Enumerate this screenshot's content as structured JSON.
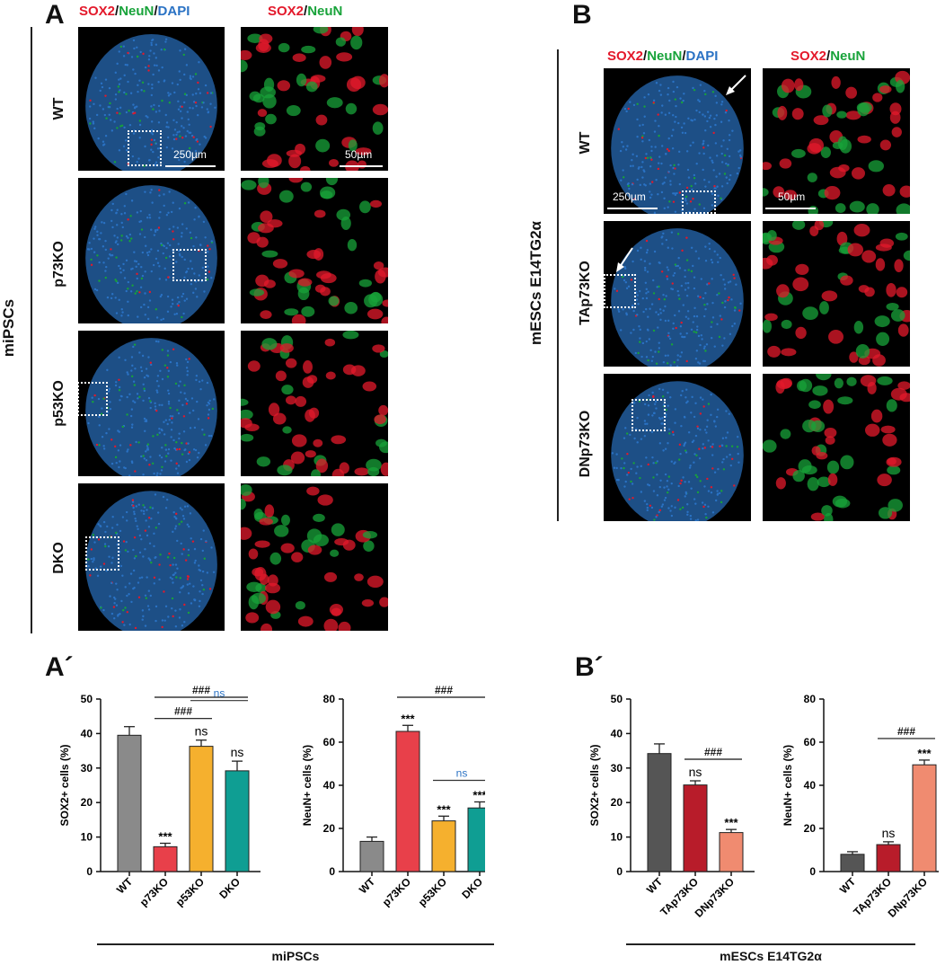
{
  "panels": {
    "A": "A",
    "B": "B",
    "A_prime": "A´",
    "B_prime": "B´"
  },
  "stain_headers": {
    "merged3": {
      "sox2": "SOX2",
      "sep1": "/",
      "neun": "NeuN",
      "sep2": "/",
      "dapi": "DAPI"
    },
    "merged2": {
      "sox2": "SOX2",
      "sep1": "/",
      "neun": "NeuN"
    }
  },
  "group_labels": {
    "A": "miPSCs",
    "B": "mESCs E14TG2α"
  },
  "rows_A": [
    "WT",
    "p73KO",
    "p53KO",
    "DKO"
  ],
  "rows_B": [
    "WT",
    "TAp73KO",
    "DNp73KO"
  ],
  "scalebars": {
    "low": "250µm",
    "high": "50µm"
  },
  "colors": {
    "sox2": "#e3192b",
    "neun": "#18a33a",
    "dapi": "#2a72c4",
    "wt_gray": "#8a8a8a",
    "p73ko_red": "#e8404a",
    "p53ko_yellow": "#f5b02e",
    "dko_teal": "#0f9e93",
    "b_wt_dark": "#555555",
    "b_tap73_crimson": "#b81c2a",
    "b_dnp73_salmon": "#f08b70",
    "ns_blue": "#2a72c4"
  },
  "chart_data": [
    {
      "type": "bar",
      "group": "miPSCs",
      "ylabel": "SOX2+ cells (%)",
      "ylim": [
        0,
        50
      ],
      "yticks": [
        "0",
        "10",
        "20",
        "30",
        "40",
        "50"
      ],
      "categories": [
        "WT",
        "p73KO",
        "p53KO",
        "DKO"
      ],
      "values": [
        39.5,
        7.2,
        36.3,
        29.2
      ],
      "errors": [
        2.5,
        1.0,
        1.8,
        2.8
      ],
      "bar_colors": [
        "#8a8a8a",
        "#e8404a",
        "#f5b02e",
        "#0f9e93"
      ],
      "annotations": [
        "",
        "***",
        "ns",
        "ns"
      ],
      "comparisons": [
        {
          "from": 1,
          "to": 3,
          "label": "###",
          "color": "#111"
        },
        {
          "from": 1,
          "to": 2,
          "label": "###",
          "color": "#111"
        },
        {
          "from": 2,
          "to": 3,
          "label": "ns",
          "color": "#2a72c4"
        }
      ]
    },
    {
      "type": "bar",
      "group": "miPSCs",
      "ylabel": "NeuN+ cells (%)",
      "ylim": [
        0,
        80
      ],
      "yticks": [
        "0",
        "20",
        "40",
        "60",
        "80"
      ],
      "categories": [
        "WT",
        "p73KO",
        "p53KO",
        "DKO"
      ],
      "values": [
        14,
        65,
        23.5,
        29.5
      ],
      "errors": [
        2.0,
        2.8,
        2.2,
        2.8
      ],
      "bar_colors": [
        "#8a8a8a",
        "#e8404a",
        "#f5b02e",
        "#0f9e93"
      ],
      "annotations": [
        "",
        "***",
        "***",
        "***"
      ],
      "comparisons": [
        {
          "from": 1,
          "to": 3,
          "label": "###",
          "color": "#111"
        },
        {
          "from": 1,
          "to": 2,
          "label": "###",
          "color": "#111"
        },
        {
          "from": 2,
          "to": 3,
          "label": "ns",
          "color": "#2a72c4"
        }
      ]
    },
    {
      "type": "bar",
      "group": "mESCs E14TG2α",
      "ylabel": "SOX2+ cells (%)",
      "ylim": [
        0,
        50
      ],
      "yticks": [
        "0",
        "10",
        "20",
        "30",
        "40",
        "50"
      ],
      "categories": [
        "WT",
        "TAp73KO",
        "DNp73KO"
      ],
      "values": [
        34.2,
        25.1,
        11.3
      ],
      "errors": [
        2.8,
        1.2,
        0.9
      ],
      "bar_colors": [
        "#555555",
        "#b81c2a",
        "#f08b70"
      ],
      "annotations": [
        "",
        "ns",
        "***"
      ],
      "comparisons": [
        {
          "from": 1,
          "to": 2,
          "label": "###",
          "color": "#111"
        }
      ]
    },
    {
      "type": "bar",
      "group": "mESCs E14TG2α",
      "ylabel": "NeuN+ cells (%)",
      "ylim": [
        0,
        80
      ],
      "yticks": [
        "0",
        "20",
        "40",
        "60",
        "80"
      ],
      "categories": [
        "WT",
        "TAp73KO",
        "DNp73KO"
      ],
      "values": [
        8,
        12.5,
        49.5
      ],
      "errors": [
        1.2,
        1.3,
        2.2
      ],
      "bar_colors": [
        "#555555",
        "#b81c2a",
        "#f08b70"
      ],
      "annotations": [
        "",
        "ns",
        "***"
      ],
      "comparisons": [
        {
          "from": 1,
          "to": 2,
          "label": "###",
          "color": "#111"
        }
      ]
    }
  ]
}
